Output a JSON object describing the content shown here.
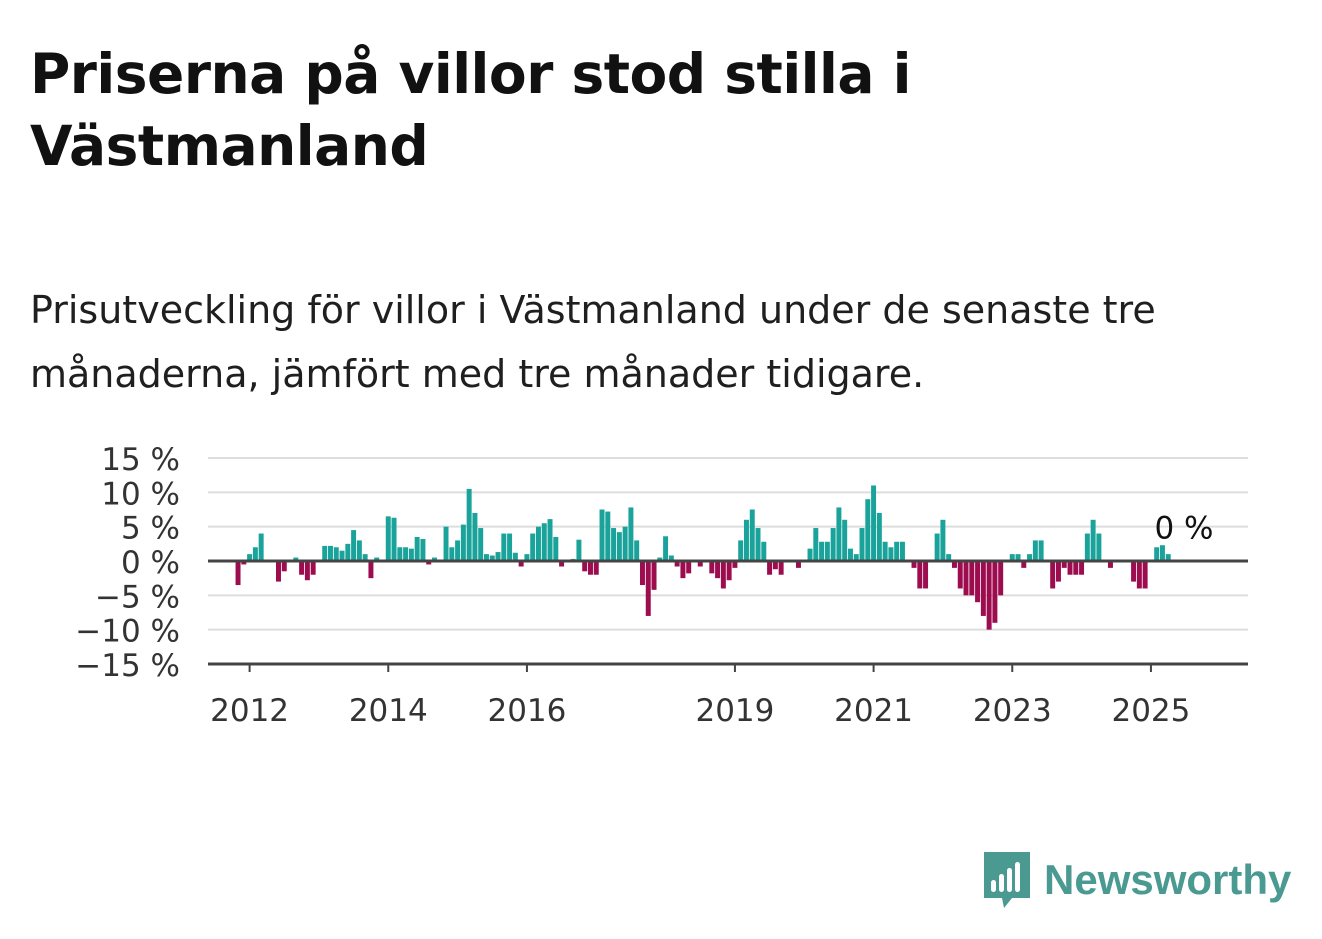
{
  "title": "Priserna på villor stod stilla i Västmanland",
  "subtitle": "Prisutveckling för villor i Västmanland under de senaste tre månaderna, jämfört med tre månader tidigare.",
  "brand": {
    "name": "Newsworthy",
    "icon": "newsworthy-logo-icon"
  },
  "colors": {
    "positive": "#1aa39a",
    "negative": "#9c0c4e",
    "grid": "#dddddd",
    "axis": "#444444",
    "text": "#333333"
  },
  "chart_data": {
    "type": "bar",
    "title": "",
    "xlabel": "",
    "ylabel": "",
    "ylim": [
      -15,
      15
    ],
    "y_ticks": [
      15,
      10,
      5,
      0,
      -5,
      -10,
      -15
    ],
    "y_tick_labels": [
      "15 %",
      "10 %",
      "5 %",
      "0 %",
      "−5 %",
      "−10 %",
      "−15 %"
    ],
    "x_ticks": [
      2012,
      2014,
      2016,
      2019,
      2021,
      2023,
      2025
    ],
    "x_tick_labels": [
      "2012",
      "2014",
      "2016",
      "2019",
      "2021",
      "2023",
      "2025"
    ],
    "x_start": 2011.75,
    "x_step": 0.08333,
    "annotation": {
      "label": "0 %",
      "at": "last"
    },
    "values": [
      0,
      -3.5,
      -0.5,
      1,
      2,
      4,
      0,
      0,
      -3,
      -1.5,
      0,
      0.5,
      -2,
      -2.8,
      -2,
      0,
      2.2,
      2.2,
      2,
      1.5,
      2.5,
      4.5,
      3,
      1,
      -2.5,
      0.5,
      0,
      6.5,
      6.3,
      2,
      2,
      1.8,
      3.5,
      3.2,
      -0.5,
      0.5,
      0,
      5,
      2,
      3,
      5.3,
      10.5,
      7,
      4.8,
      1,
      0.8,
      1.3,
      4,
      4,
      1.2,
      -0.8,
      1,
      4,
      5,
      5.5,
      6.1,
      3.5,
      -0.8,
      0,
      0.3,
      3.1,
      -1.5,
      -2,
      -2,
      7.5,
      7.2,
      4.8,
      4.2,
      5,
      7.8,
      3,
      -3.5,
      -8,
      -4.2,
      0.5,
      3.6,
      0.8,
      -0.8,
      -2.5,
      -1.8,
      0,
      -0.8,
      0,
      -1.8,
      -2.5,
      -4,
      -2.8,
      -1,
      3,
      6,
      7.5,
      4.8,
      2.8,
      -2,
      -1.2,
      -2,
      0,
      0,
      -1,
      0,
      1.8,
      4.8,
      2.8,
      2.8,
      4.8,
      7.8,
      6,
      1.8,
      1,
      4.8,
      9,
      11,
      7,
      2.8,
      2,
      2.8,
      2.8,
      0,
      -1,
      -4,
      -4,
      0,
      4,
      6,
      1,
      -1,
      -4,
      -5,
      -5,
      -6,
      -8,
      -10,
      -9,
      -5,
      0,
      1,
      1,
      -1,
      1,
      3,
      3,
      0,
      -4,
      -3,
      -1,
      -2,
      -2,
      -2,
      4,
      6,
      4,
      0,
      -1,
      0,
      0,
      0,
      -3,
      -4,
      -4,
      0,
      2,
      2.3,
      1,
      0
    ]
  }
}
